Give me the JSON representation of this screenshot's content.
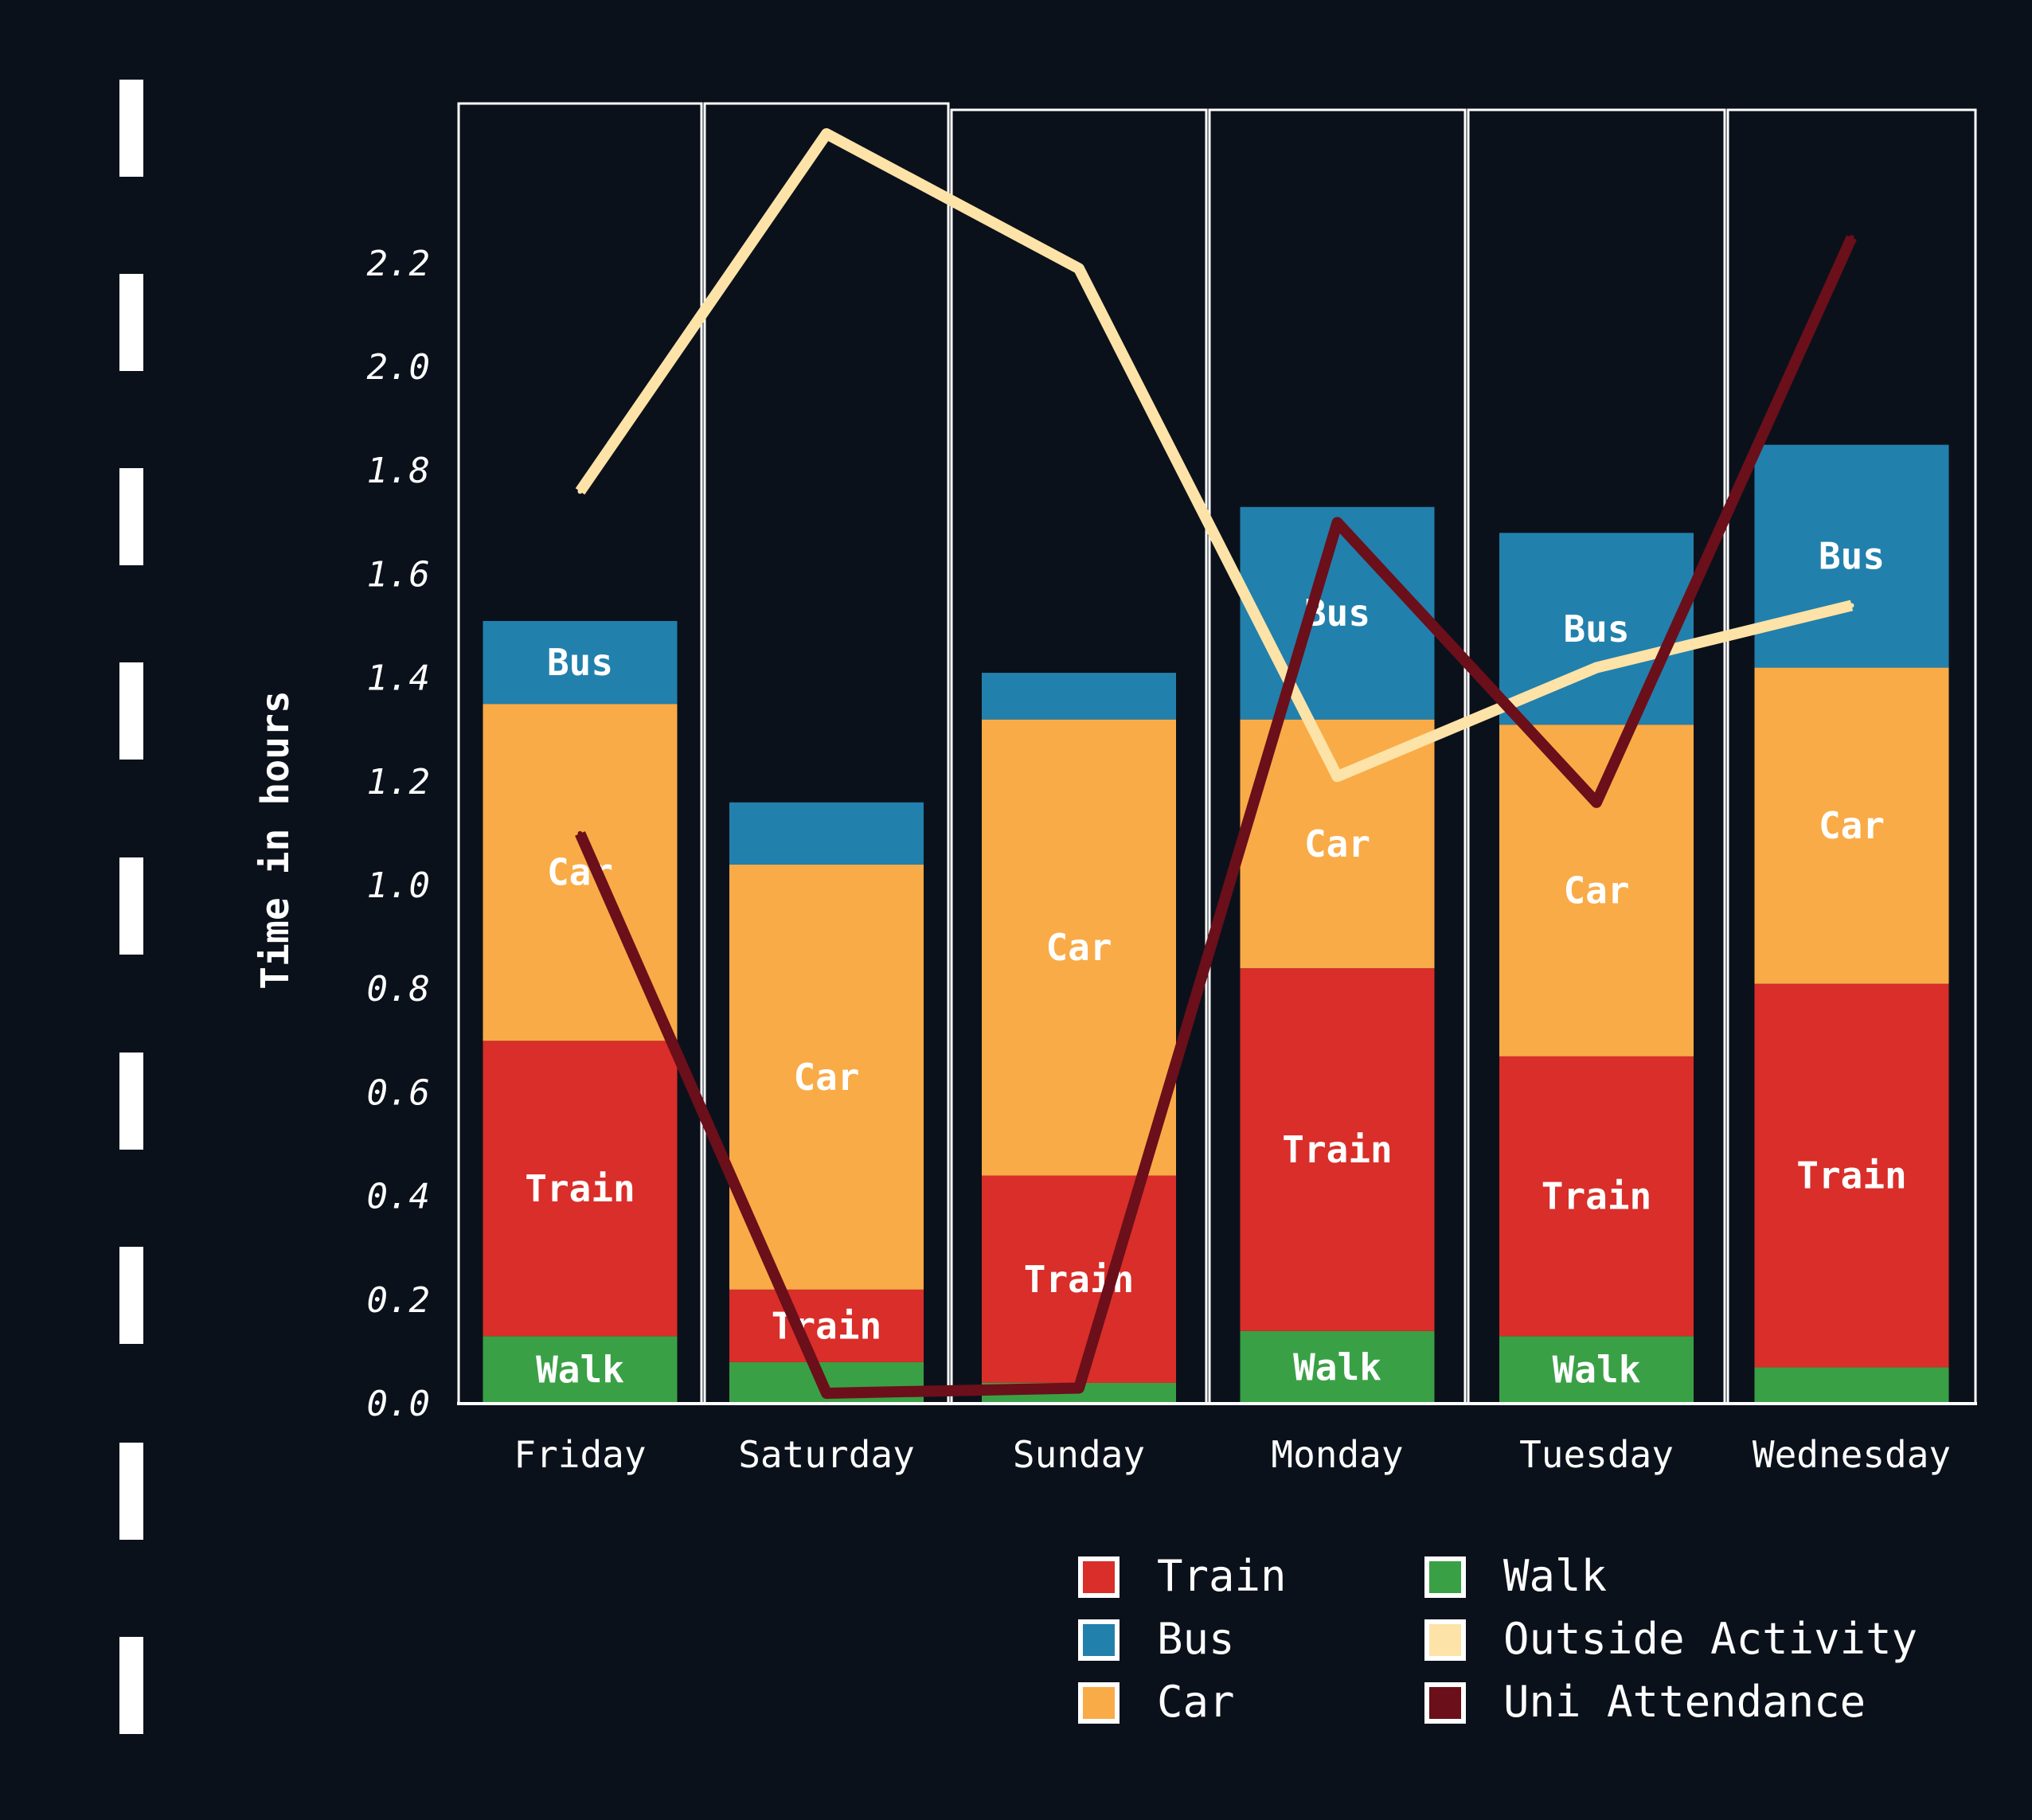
{
  "chart_data": {
    "type": "bar",
    "stacked": true,
    "ylabel": "Time in hours",
    "xlabel": "",
    "ylim": [
      0,
      2.5
    ],
    "yticks": [
      "0.0",
      "0.2",
      "0.4",
      "0.6",
      "0.8",
      "1.0",
      "1.2",
      "1.4",
      "1.6",
      "1.8",
      "2.0",
      "2.2"
    ],
    "categories": [
      "Friday",
      "Saturday",
      "Sunday",
      "Monday",
      "Tuesday",
      "Wednesday"
    ],
    "series": [
      {
        "name": "Walk",
        "kind": "bar",
        "color": "#3aa046",
        "values": [
          0.13,
          0.08,
          0.04,
          0.14,
          0.13,
          0.07
        ]
      },
      {
        "name": "Train",
        "kind": "bar",
        "color": "#d92e29",
        "values": [
          0.57,
          0.14,
          0.4,
          0.7,
          0.54,
          0.74
        ]
      },
      {
        "name": "Car",
        "kind": "bar",
        "color": "#f9ab47",
        "values": [
          0.65,
          0.82,
          0.88,
          0.48,
          0.64,
          0.61
        ]
      },
      {
        "name": "Bus",
        "kind": "bar",
        "color": "#2280ac",
        "values": [
          0.16,
          0.12,
          0.09,
          0.41,
          0.37,
          0.43
        ]
      },
      {
        "name": "Outside Activity",
        "kind": "line",
        "color": "#fde3a7",
        "values": [
          1.76,
          2.45,
          2.19,
          1.21,
          1.42,
          1.54
        ]
      },
      {
        "name": "Uni Attendance",
        "kind": "line",
        "color": "#6b0f1a",
        "values": [
          1.1,
          0.02,
          0.03,
          1.7,
          1.16,
          2.25
        ]
      }
    ],
    "segment_labels": [
      {
        "Walk": "Walk",
        "Train": "Train",
        "Car": "Car",
        "Bus": "Bus"
      },
      {
        "Train": "Train",
        "Car": "Car"
      },
      {
        "Train": "Train",
        "Car": "Car"
      },
      {
        "Walk": "Walk",
        "Train": "Train",
        "Car": "Car",
        "Bus": "Bus"
      },
      {
        "Walk": "Walk",
        "Train": "Train",
        "Car": "Car",
        "Bus": "Bus"
      },
      {
        "Train": "Train",
        "Car": "Car",
        "Bus": "Bus"
      }
    ],
    "legend": {
      "placement": "bottom-right",
      "items": [
        {
          "label": "Train",
          "color": "#d92e29"
        },
        {
          "label": "Bus",
          "color": "#2280ac"
        },
        {
          "label": "Car",
          "color": "#f9ab47"
        },
        {
          "label": "Walk",
          "color": "#3aa046"
        },
        {
          "label": "Outside Activity",
          "color": "#fde3a7"
        },
        {
          "label": "Uni Attendance",
          "color": "#6b0f1a"
        }
      ]
    },
    "background_color": "#0b111b"
  }
}
